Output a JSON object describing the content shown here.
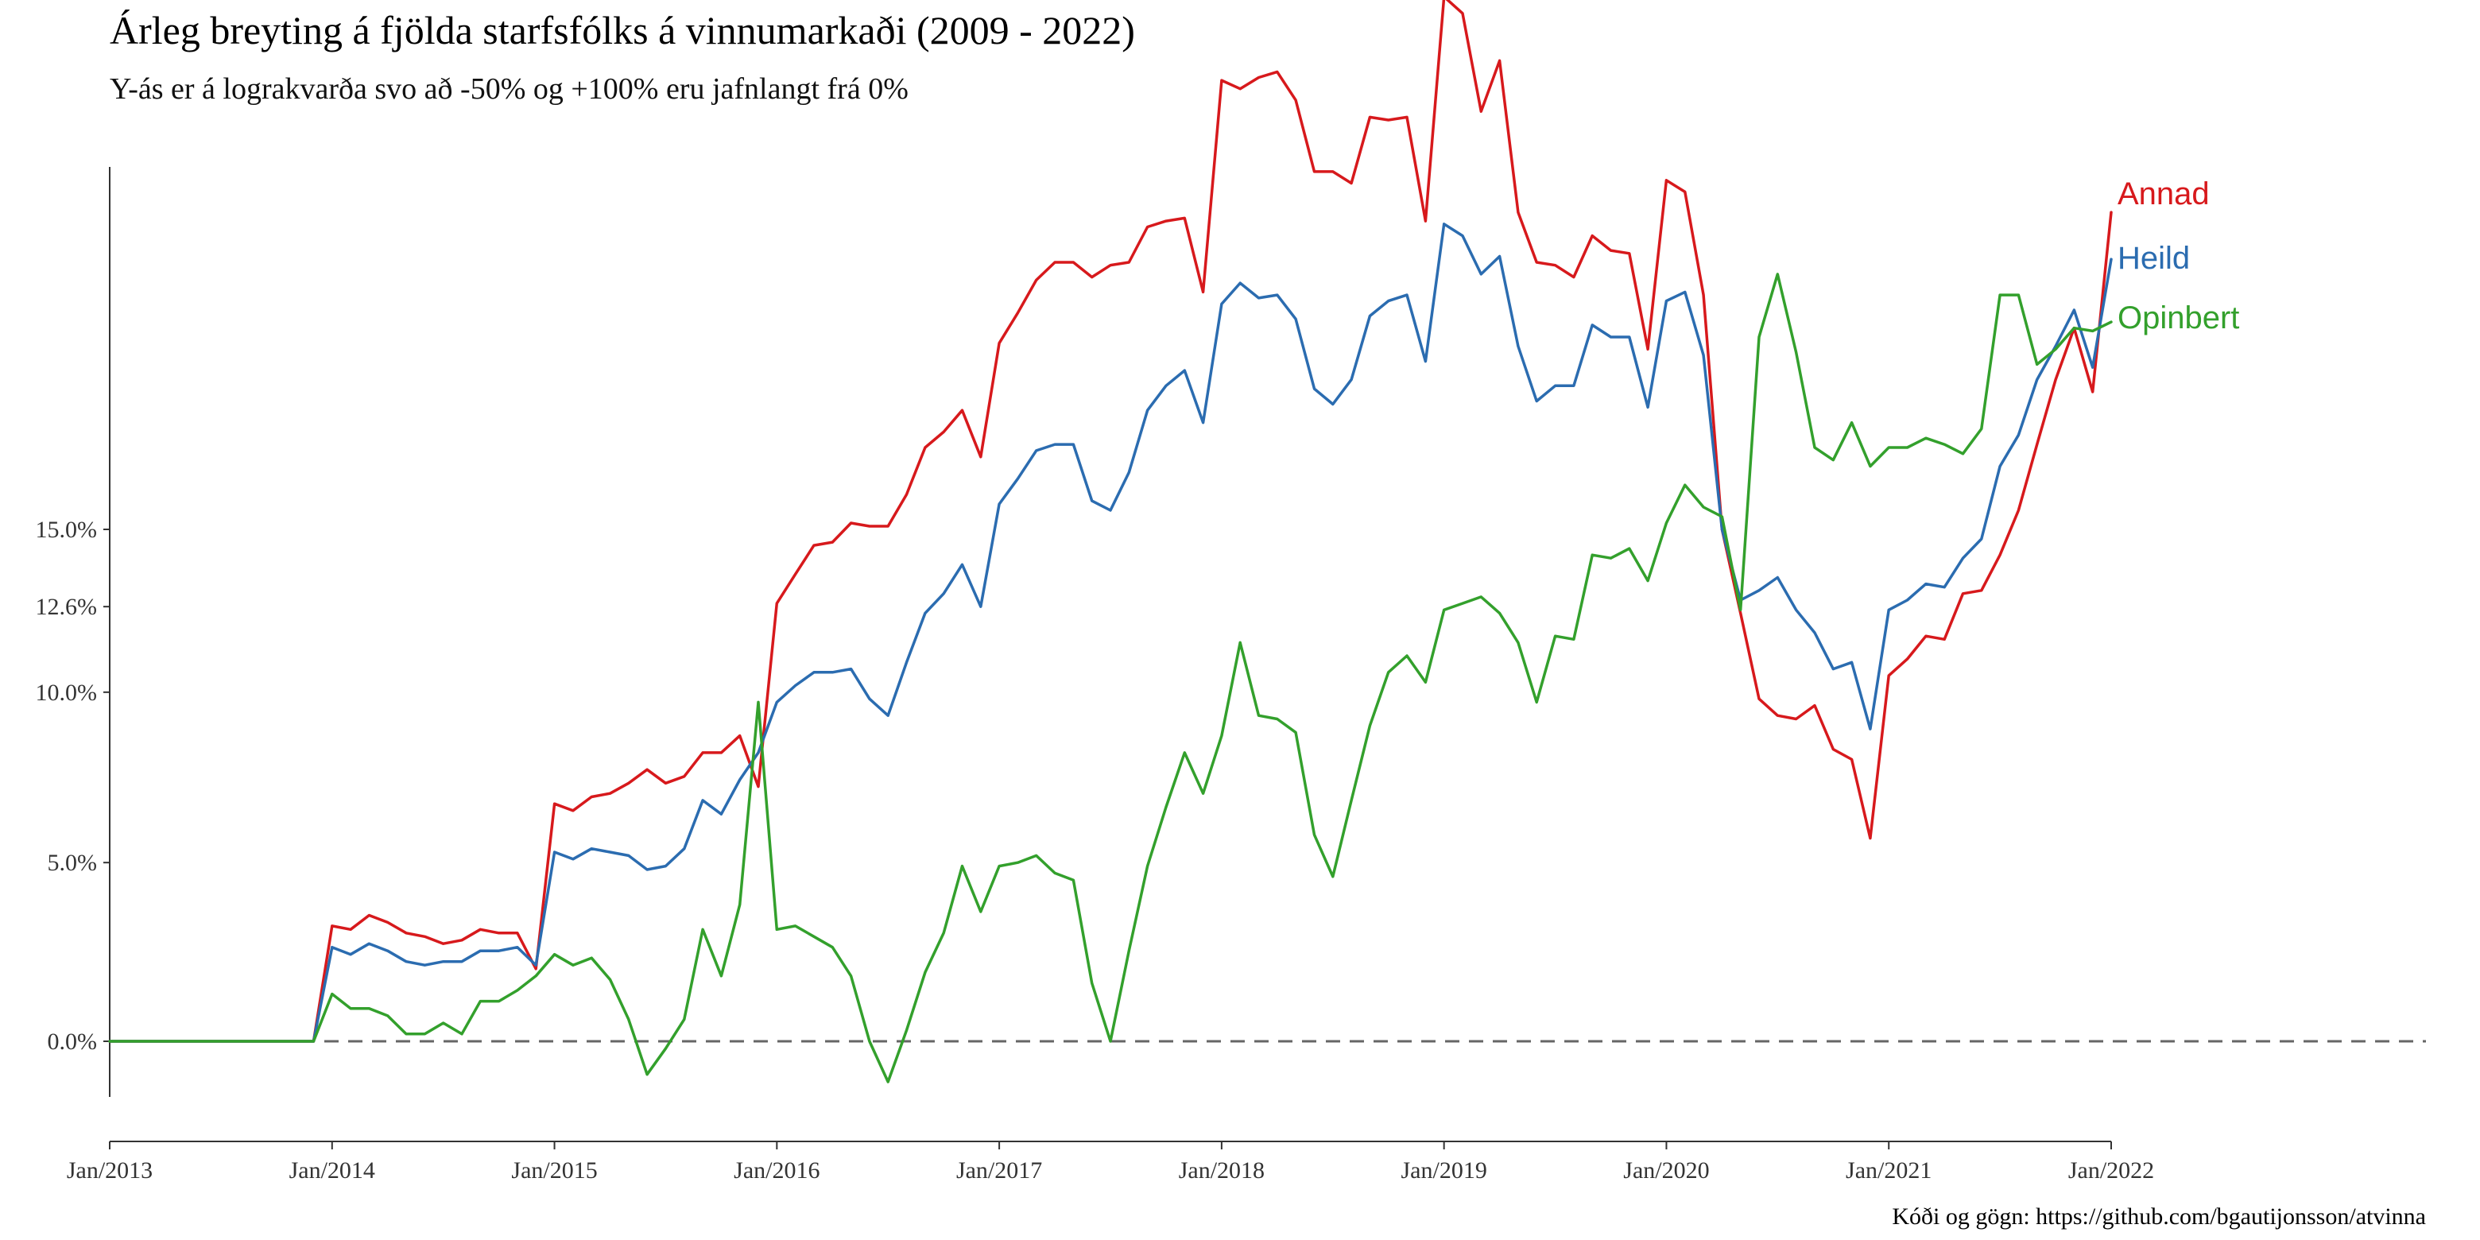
{
  "title": "Árleg breyting á fjölda starfsfólks á vinnumarkaði (2009 - 2022)",
  "subtitle": "Y-ás er á lograkvarða svo að -50% og +100% eru jafnlangt frá 0%",
  "caption": "Kóði og gögn: https://github.com/bgautijonsson/atvinna",
  "chart_data": {
    "type": "line",
    "title": "Árleg breyting á fjölda starfsfólks á vinnumarkaði (2009 - 2022)",
    "subtitle": "Y-ás er á lograkvarða svo að -50% og +100% eru jafnlangt frá 0%",
    "xlabel": "",
    "ylabel": "",
    "y_scale": "log(1+y)",
    "xlim": [
      "Jan/2013",
      "Jan/2022"
    ],
    "ylim": [
      -0.011,
      0.225
    ],
    "x_ticks": [
      "Jan/2013",
      "Jan/2014",
      "Jan/2015",
      "Jan/2016",
      "Jan/2017",
      "Jan/2018",
      "Jan/2019",
      "Jan/2020",
      "Jan/2021",
      "Jan/2022"
    ],
    "y_ticks": [
      {
        "value": 0.0,
        "label": "0.0%"
      },
      {
        "value": 0.05,
        "label": "5.0%"
      },
      {
        "value": 0.1,
        "label": "10.0%"
      },
      {
        "value": 0.126,
        "label": "12.6%"
      },
      {
        "value": 0.15,
        "label": "15.0%"
      }
    ],
    "reference_line": {
      "value": 0.0,
      "style": "dashed"
    },
    "grid": false,
    "legend": "direct labels at right end of lines",
    "x": [
      "2013-01",
      "2013-02",
      "2013-03",
      "2013-04",
      "2013-05",
      "2013-06",
      "2013-07",
      "2013-08",
      "2013-09",
      "2013-10",
      "2013-11",
      "2013-12",
      "2014-01",
      "2014-02",
      "2014-03",
      "2014-04",
      "2014-05",
      "2014-06",
      "2014-07",
      "2014-08",
      "2014-09",
      "2014-10",
      "2014-11",
      "2014-12",
      "2015-01",
      "2015-02",
      "2015-03",
      "2015-04",
      "2015-05",
      "2015-06",
      "2015-07",
      "2015-08",
      "2015-09",
      "2015-10",
      "2015-11",
      "2015-12",
      "2016-01",
      "2016-02",
      "2016-03",
      "2016-04",
      "2016-05",
      "2016-06",
      "2016-07",
      "2016-08",
      "2016-09",
      "2016-10",
      "2016-11",
      "2016-12",
      "2017-01",
      "2017-02",
      "2017-03",
      "2017-04",
      "2017-05",
      "2017-06",
      "2017-07",
      "2017-08",
      "2017-09",
      "2017-10",
      "2017-11",
      "2017-12",
      "2018-01",
      "2018-02",
      "2018-03",
      "2018-04",
      "2018-05",
      "2018-06",
      "2018-07",
      "2018-08",
      "2018-09",
      "2018-10",
      "2018-11",
      "2018-12",
      "2019-01",
      "2019-02",
      "2019-03",
      "2019-04",
      "2019-05",
      "2019-06",
      "2019-07",
      "2019-08",
      "2019-09",
      "2019-10",
      "2019-11",
      "2019-12",
      "2020-01",
      "2020-02",
      "2020-03",
      "2020-04",
      "2020-05",
      "2020-06",
      "2020-07",
      "2020-08",
      "2020-09",
      "2020-10",
      "2020-11",
      "2020-12",
      "2021-01",
      "2021-02",
      "2021-03",
      "2021-04",
      "2021-05",
      "2021-06",
      "2021-07",
      "2021-08",
      "2021-09",
      "2021-10",
      "2021-11",
      "2021-12",
      "2022-01"
    ],
    "series": [
      {
        "name": "Annad",
        "color": "#d7191c",
        "values": [
          0,
          0,
          0,
          0,
          0,
          0,
          0,
          0,
          0,
          0,
          0,
          0,
          0.032,
          0.031,
          0.035,
          0.033,
          0.03,
          0.029,
          0.027,
          0.028,
          0.031,
          0.03,
          0.03,
          0.02,
          0.067,
          0.065,
          0.069,
          0.07,
          0.073,
          0.077,
          0.073,
          0.075,
          0.082,
          0.082,
          0.087,
          0.072,
          0.127,
          0.136,
          0.145,
          0.146,
          0.152,
          0.151,
          0.151,
          0.161,
          0.176,
          0.181,
          0.188,
          0.173,
          0.21,
          0.22,
          0.231,
          0.237,
          0.237,
          0.232,
          0.236,
          0.237,
          0.249,
          0.251,
          0.252,
          0.227,
          0.3,
          0.297,
          0.301,
          0.303,
          0.293,
          0.268,
          0.268,
          0.264,
          0.287,
          0.286,
          0.287,
          0.251,
          0.33,
          0.324,
          0.289,
          0.307,
          0.254,
          0.237,
          0.236,
          0.232,
          0.246,
          0.241,
          0.24,
          0.208,
          0.265,
          0.261,
          0.226,
          0.15,
          0.124,
          0.098,
          0.093,
          0.092,
          0.096,
          0.083,
          0.08,
          0.057,
          0.105,
          0.11,
          0.117,
          0.116,
          0.13,
          0.131,
          0.142,
          0.156,
          0.177,
          0.198,
          0.215,
          0.194,
          0.254
        ]
      },
      {
        "name": "Heild",
        "color": "#2b6cb0",
        "values": [
          0,
          0,
          0,
          0,
          0,
          0,
          0,
          0,
          0,
          0,
          0,
          0,
          0.026,
          0.024,
          0.027,
          0.025,
          0.022,
          0.021,
          0.022,
          0.022,
          0.025,
          0.025,
          0.026,
          0.021,
          0.053,
          0.051,
          0.054,
          0.053,
          0.052,
          0.048,
          0.049,
          0.054,
          0.068,
          0.064,
          0.074,
          0.082,
          0.097,
          0.102,
          0.106,
          0.106,
          0.107,
          0.098,
          0.093,
          0.109,
          0.124,
          0.13,
          0.139,
          0.126,
          0.158,
          0.166,
          0.175,
          0.177,
          0.177,
          0.159,
          0.156,
          0.168,
          0.188,
          0.196,
          0.201,
          0.184,
          0.223,
          0.23,
          0.225,
          0.226,
          0.218,
          0.195,
          0.19,
          0.198,
          0.219,
          0.224,
          0.226,
          0.204,
          0.25,
          0.246,
          0.233,
          0.239,
          0.209,
          0.191,
          0.196,
          0.196,
          0.216,
          0.212,
          0.212,
          0.189,
          0.224,
          0.227,
          0.206,
          0.15,
          0.128,
          0.131,
          0.135,
          0.125,
          0.118,
          0.107,
          0.109,
          0.089,
          0.125,
          0.128,
          0.133,
          0.132,
          0.141,
          0.147,
          0.17,
          0.18,
          0.198,
          0.209,
          0.221,
          0.202,
          0.238
        ]
      },
      {
        "name": "Opinbert",
        "color": "#33a02c",
        "values": [
          0,
          0,
          0,
          0,
          0,
          0,
          0,
          0,
          0,
          0,
          0,
          0,
          0.013,
          0.009,
          0.009,
          0.007,
          0.002,
          0.002,
          0.005,
          0.002,
          0.011,
          0.011,
          0.014,
          0.018,
          0.024,
          0.021,
          0.023,
          0.017,
          0.006,
          -0.009,
          -0.002,
          0.006,
          0.031,
          0.018,
          0.038,
          0.097,
          0.031,
          0.032,
          0.029,
          0.026,
          0.018,
          0.0,
          -0.011,
          0.003,
          0.019,
          0.03,
          0.049,
          0.036,
          0.049,
          0.05,
          0.052,
          0.047,
          0.045,
          0.016,
          0.0,
          0.025,
          0.049,
          0.066,
          0.082,
          0.07,
          0.087,
          0.115,
          0.093,
          0.092,
          0.088,
          0.058,
          0.046,
          0.068,
          0.09,
          0.106,
          0.111,
          0.103,
          0.125,
          0.127,
          0.129,
          0.124,
          0.115,
          0.097,
          0.117,
          0.116,
          0.142,
          0.141,
          0.144,
          0.134,
          0.152,
          0.164,
          0.157,
          0.154,
          0.125,
          0.212,
          0.233,
          0.207,
          0.176,
          0.172,
          0.184,
          0.17,
          0.176,
          0.176,
          0.179,
          0.177,
          0.174,
          0.182,
          0.226,
          0.226,
          0.203,
          0.208,
          0.215,
          0.214,
          0.217
        ]
      }
    ]
  }
}
